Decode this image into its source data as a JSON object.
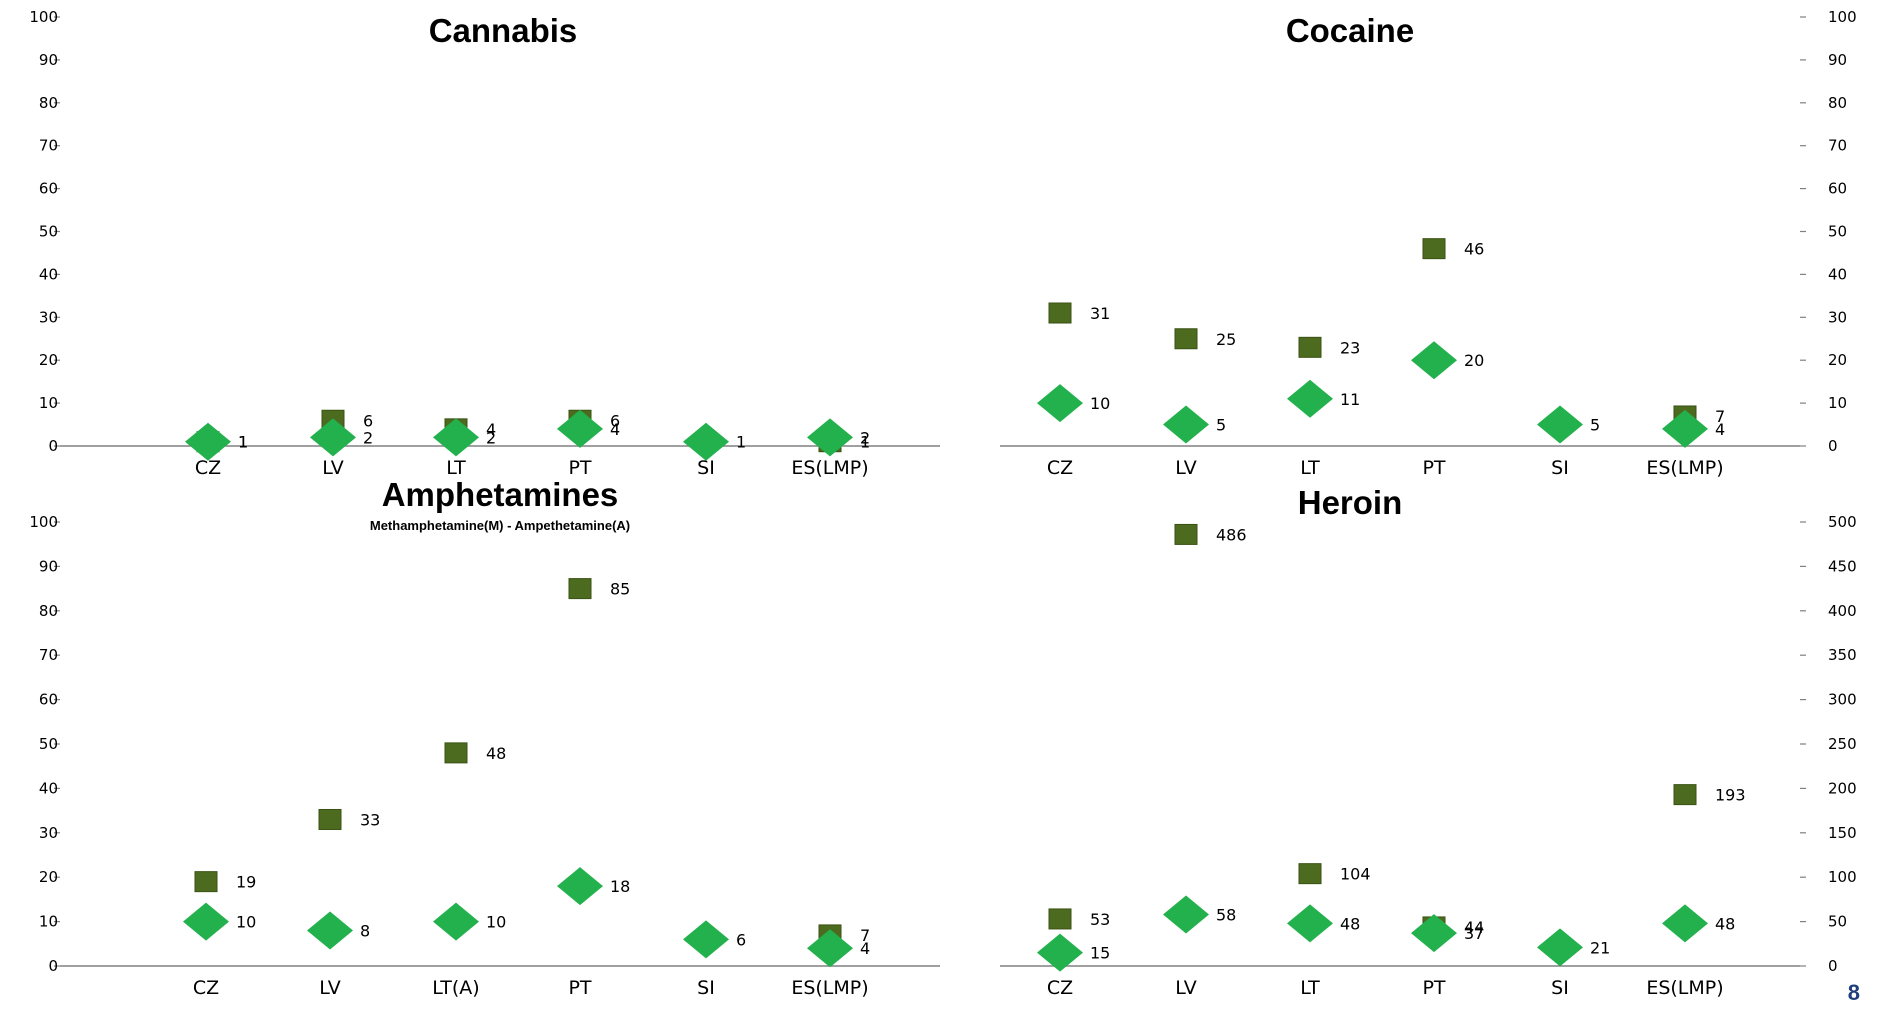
{
  "page_number": "8",
  "colors": {
    "square": "#4d6b1f",
    "diamond": "#22b14c",
    "axis": "#808080",
    "page_number": "#1f3f7a"
  },
  "chart_data": [
    {
      "type": "scatter",
      "title": "Cannabis",
      "y_axis_side": "left",
      "ylim": [
        0,
        100
      ],
      "y_ticks": [
        "0",
        "10",
        "20",
        "30",
        "40",
        "50",
        "60",
        "70",
        "80",
        "90",
        "100"
      ],
      "categories": [
        "CZ",
        "LV",
        "LT",
        "PT",
        "SI",
        "ES(LMP)"
      ],
      "series": [
        {
          "marker": "square",
          "values": [
            1,
            6,
            4,
            6,
            null,
            1
          ],
          "labels": [
            "1",
            "6",
            "4",
            "6",
            "",
            "1"
          ]
        },
        {
          "marker": "diamond",
          "values": [
            1,
            2,
            2,
            4,
            1,
            2
          ],
          "labels": [
            "1",
            "2",
            "2",
            "4",
            "1",
            "2"
          ]
        }
      ]
    },
    {
      "type": "scatter",
      "title": "Cocaine",
      "y_axis_side": "right",
      "ylim": [
        0,
        100
      ],
      "y_ticks": [
        "0",
        "10",
        "20",
        "30",
        "40",
        "50",
        "60",
        "70",
        "80",
        "90",
        "100"
      ],
      "categories": [
        "CZ",
        "LV",
        "LT",
        "PT",
        "SI",
        "ES(LMP)"
      ],
      "series": [
        {
          "marker": "square",
          "values": [
            31,
            25,
            23,
            46,
            null,
            7
          ],
          "labels": [
            "31",
            "25",
            "23",
            "46",
            "",
            "7"
          ]
        },
        {
          "marker": "diamond",
          "values": [
            10,
            5,
            11,
            20,
            5,
            4
          ],
          "labels": [
            "10",
            "5",
            "11",
            "20",
            "5",
            "4"
          ]
        }
      ]
    },
    {
      "type": "scatter",
      "title": "Amphetamines",
      "subtitle": "Methamphetamine(M) - Ampethetamine(A)",
      "y_axis_side": "left",
      "ylim": [
        0,
        100
      ],
      "y_ticks": [
        "0",
        "10",
        "20",
        "30",
        "40",
        "50",
        "60",
        "70",
        "80",
        "90",
        "100"
      ],
      "categories": [
        "CZ",
        "LV",
        "LT(A)",
        "PT",
        "SI",
        "ES(LMP)"
      ],
      "series": [
        {
          "marker": "square",
          "values": [
            19,
            33,
            48,
            85,
            null,
            7
          ],
          "labels": [
            "19",
            "33",
            "48",
            "85",
            "",
            "7"
          ]
        },
        {
          "marker": "diamond",
          "values": [
            10,
            8,
            10,
            18,
            6,
            4
          ],
          "labels": [
            "10",
            "8",
            "10",
            "18",
            "6",
            "4"
          ]
        }
      ]
    },
    {
      "type": "scatter",
      "title": "Heroin",
      "y_axis_side": "right",
      "ylim": [
        0,
        500
      ],
      "y_ticks": [
        "0",
        "50",
        "100",
        "150",
        "200",
        "250",
        "300",
        "350",
        "400",
        "450",
        "500"
      ],
      "categories": [
        "CZ",
        "LV",
        "LT",
        "PT",
        "SI",
        "ES(LMP)"
      ],
      "series": [
        {
          "marker": "square",
          "values": [
            53,
            486,
            104,
            44,
            null,
            193
          ],
          "labels": [
            "53",
            "486",
            "104",
            "44",
            "",
            "193"
          ]
        },
        {
          "marker": "diamond",
          "values": [
            15,
            58,
            48,
            37,
            21,
            48
          ],
          "labels": [
            "15",
            "58",
            "48",
            "37",
            "21",
            "48"
          ]
        }
      ]
    }
  ]
}
